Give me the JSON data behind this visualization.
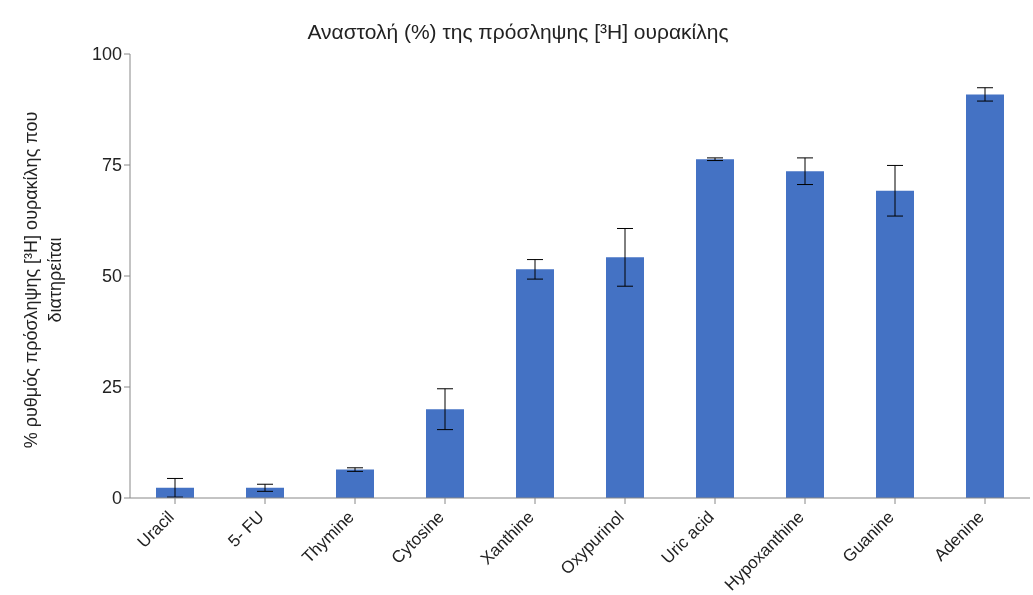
{
  "chart_data": {
    "type": "bar",
    "title": "Αναστολή (%) της πρόσληψης [³H] ουρακίλης",
    "ylabel": "% ρυθμός πρόσληψης [³H] ουρακίλης που διατηρείται",
    "categories": [
      "Uracil",
      "5- FU",
      "Thymine",
      "Cytosine",
      "Xanthine",
      "Oxypurinol",
      "Uric acid",
      "Hypoxanthine",
      "Guanine",
      "Adenine"
    ],
    "values": [
      2.3,
      2.3,
      6.4,
      20,
      51.5,
      54.2,
      76.3,
      73.6,
      69.2,
      90.9
    ],
    "errors": [
      2.1,
      0.8,
      0.4,
      4.6,
      2.2,
      6.5,
      0.3,
      3,
      5.7,
      1.5
    ],
    "color": "#4472c4",
    "ylim": [
      0,
      100
    ],
    "yticks": [
      0,
      25,
      50,
      75,
      100
    ],
    "grid": false
  }
}
